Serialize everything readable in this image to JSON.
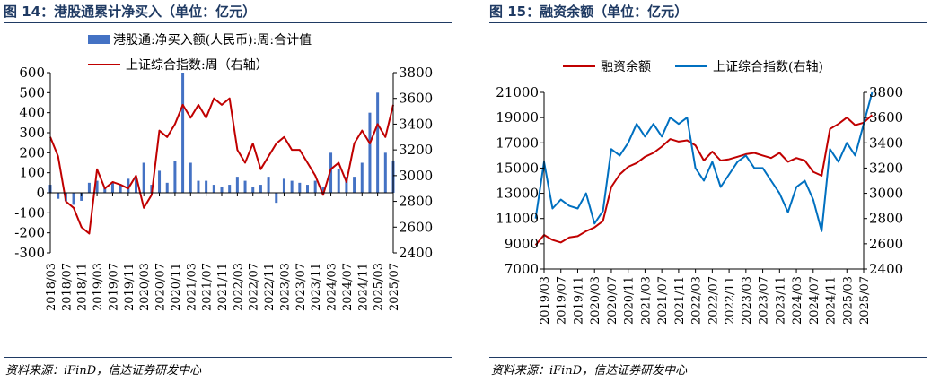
{
  "left_panel": {
    "title": "图 14：港股通累计净买入（单位：亿元）",
    "source": "资料来源：iFinD，信达证券研发中心"
  },
  "right_panel": {
    "title": "图 15：融资余额（单位：亿元）",
    "source": "资料来源：iFinD，信达证券研发中心"
  },
  "chart_data": [
    {
      "type": "bar",
      "title": "港股通累计净买入（单位：亿元）",
      "x_tick_labels": [
        "2018/03",
        "2018/07",
        "2018/11",
        "2019/03",
        "2019/07",
        "2019/11",
        "2020/03",
        "2020/07",
        "2020/11",
        "2021/03",
        "2021/07",
        "2021/11",
        "2022/03",
        "2022/07",
        "2022/11",
        "2023/03",
        "2023/07",
        "2023/11",
        "2024/03",
        "2024/07",
        "2024/11",
        "2025/03",
        "2025/07"
      ],
      "y_left": {
        "ticks": [
          600,
          500,
          400,
          300,
          200,
          100,
          0,
          -100,
          -200,
          -300
        ],
        "ylim": [
          -300,
          600
        ]
      },
      "y_right": {
        "ticks": [
          3800,
          3600,
          3400,
          3200,
          3000,
          2800,
          2600,
          2400
        ],
        "ylim": [
          2400,
          3800
        ]
      },
      "legend_position": "top",
      "series": [
        {
          "name": "港股通:净买入额(人民币):周:合计值",
          "type": "bar",
          "axis": "left",
          "color": "#4472c4",
          "x": [
            "2018/03",
            "2018/05",
            "2018/07",
            "2018/09",
            "2018/11",
            "2019/01",
            "2019/03",
            "2019/05",
            "2019/07",
            "2019/09",
            "2019/11",
            "2020/01",
            "2020/03",
            "2020/05",
            "2020/07",
            "2020/09",
            "2020/11",
            "2021/01",
            "2021/03",
            "2021/05",
            "2021/07",
            "2021/09",
            "2021/11",
            "2022/01",
            "2022/03",
            "2022/05",
            "2022/07",
            "2022/09",
            "2022/11",
            "2023/01",
            "2023/03",
            "2023/05",
            "2023/07",
            "2023/09",
            "2023/11",
            "2024/01",
            "2024/03",
            "2024/05",
            "2024/07",
            "2024/09",
            "2024/11",
            "2025/01",
            "2025/03",
            "2025/05",
            "2025/07"
          ],
          "values": [
            40,
            -30,
            -40,
            -60,
            -40,
            50,
            60,
            30,
            50,
            40,
            70,
            80,
            150,
            40,
            110,
            50,
            160,
            600,
            150,
            60,
            60,
            40,
            30,
            40,
            80,
            60,
            30,
            40,
            80,
            -50,
            70,
            60,
            50,
            40,
            60,
            30,
            200,
            120,
            80,
            80,
            150,
            400,
            500,
            200,
            160
          ]
        },
        {
          "name": "上证综合指数:周（右轴）",
          "type": "line",
          "axis": "right",
          "color": "#c00000",
          "x": [
            "2018/03",
            "2018/05",
            "2018/07",
            "2018/09",
            "2018/11",
            "2019/01",
            "2019/03",
            "2019/05",
            "2019/07",
            "2019/09",
            "2019/11",
            "2020/01",
            "2020/03",
            "2020/05",
            "2020/07",
            "2020/09",
            "2020/11",
            "2021/01",
            "2021/03",
            "2021/05",
            "2021/07",
            "2021/09",
            "2021/11",
            "2022/01",
            "2022/03",
            "2022/05",
            "2022/07",
            "2022/09",
            "2022/11",
            "2023/01",
            "2023/03",
            "2023/05",
            "2023/07",
            "2023/09",
            "2023/11",
            "2024/01",
            "2024/03",
            "2024/05",
            "2024/07",
            "2024/09",
            "2024/11",
            "2025/01",
            "2025/03",
            "2025/05",
            "2025/07"
          ],
          "values": [
            3300,
            3150,
            2800,
            2750,
            2600,
            2550,
            3050,
            2900,
            2950,
            2930,
            2900,
            3000,
            2750,
            2850,
            3350,
            3300,
            3400,
            3550,
            3450,
            3550,
            3450,
            3600,
            3550,
            3600,
            3200,
            3100,
            3250,
            3050,
            3150,
            3250,
            3300,
            3200,
            3200,
            3100,
            3000,
            2850,
            3050,
            3100,
            2950,
            3250,
            3350,
            3250,
            3400,
            3300,
            3550
          ]
        }
      ]
    },
    {
      "type": "line",
      "title": "融资余额（单位：亿元）",
      "x_tick_labels": [
        "2019/03",
        "2019/07",
        "2019/11",
        "2020/03",
        "2020/07",
        "2020/11",
        "2021/03",
        "2021/07",
        "2021/11",
        "2022/03",
        "2022/07",
        "2022/11",
        "2023/03",
        "2023/07",
        "2023/11",
        "2024/03",
        "2024/07",
        "2024/11",
        "2025/03",
        "2025/07"
      ],
      "y_left": {
        "ticks": [
          21000,
          19000,
          17000,
          15000,
          13000,
          11000,
          9000,
          7000
        ],
        "ylim": [
          7000,
          21000
        ]
      },
      "y_right": {
        "ticks": [
          3800,
          3600,
          3400,
          3200,
          3000,
          2800,
          2600,
          2400
        ],
        "ylim": [
          2400,
          3800
        ]
      },
      "legend_position": "top",
      "series": [
        {
          "name": "融资余额",
          "axis": "left",
          "color": "#c00000",
          "x": [
            "2019/01",
            "2019/03",
            "2019/05",
            "2019/07",
            "2019/09",
            "2019/11",
            "2020/01",
            "2020/03",
            "2020/05",
            "2020/07",
            "2020/09",
            "2020/11",
            "2021/01",
            "2021/03",
            "2021/05",
            "2021/07",
            "2021/09",
            "2021/11",
            "2022/01",
            "2022/03",
            "2022/05",
            "2022/07",
            "2022/09",
            "2022/11",
            "2023/01",
            "2023/03",
            "2023/05",
            "2023/07",
            "2023/09",
            "2023/11",
            "2024/01",
            "2024/03",
            "2024/05",
            "2024/07",
            "2024/09",
            "2024/11",
            "2025/01",
            "2025/03",
            "2025/05",
            "2025/07",
            "2025/09"
          ],
          "values": [
            8900,
            9700,
            9300,
            9100,
            9500,
            9600,
            10000,
            10300,
            10800,
            13500,
            14500,
            15100,
            15400,
            15900,
            16200,
            16700,
            17300,
            17100,
            17200,
            16800,
            15600,
            16300,
            15600,
            15700,
            15900,
            16100,
            16200,
            16000,
            15800,
            16200,
            15500,
            15800,
            15600,
            14700,
            14400,
            18100,
            18500,
            19000,
            18400,
            18600,
            19200
          ]
        },
        {
          "name": "上证综合指数(右轴)",
          "axis": "right",
          "color": "#0070c0",
          "x": [
            "2019/01",
            "2019/03",
            "2019/05",
            "2019/07",
            "2019/09",
            "2019/11",
            "2020/01",
            "2020/03",
            "2020/05",
            "2020/07",
            "2020/09",
            "2020/11",
            "2021/01",
            "2021/03",
            "2021/05",
            "2021/07",
            "2021/09",
            "2021/11",
            "2022/01",
            "2022/03",
            "2022/05",
            "2022/07",
            "2022/09",
            "2022/11",
            "2023/01",
            "2023/03",
            "2023/05",
            "2023/07",
            "2023/09",
            "2023/11",
            "2024/01",
            "2024/03",
            "2024/05",
            "2024/07",
            "2024/09",
            "2024/11",
            "2025/01",
            "2025/03",
            "2025/05",
            "2025/07",
            "2025/09"
          ],
          "values": [
            2800,
            3250,
            2880,
            2950,
            2900,
            2880,
            3000,
            2760,
            2860,
            3350,
            3300,
            3400,
            3550,
            3450,
            3550,
            3450,
            3600,
            3550,
            3600,
            3200,
            3100,
            3250,
            3050,
            3150,
            3250,
            3300,
            3200,
            3200,
            3100,
            3000,
            2850,
            3050,
            3100,
            2950,
            2700,
            3350,
            3250,
            3400,
            3300,
            3550,
            3800
          ]
        }
      ]
    }
  ]
}
